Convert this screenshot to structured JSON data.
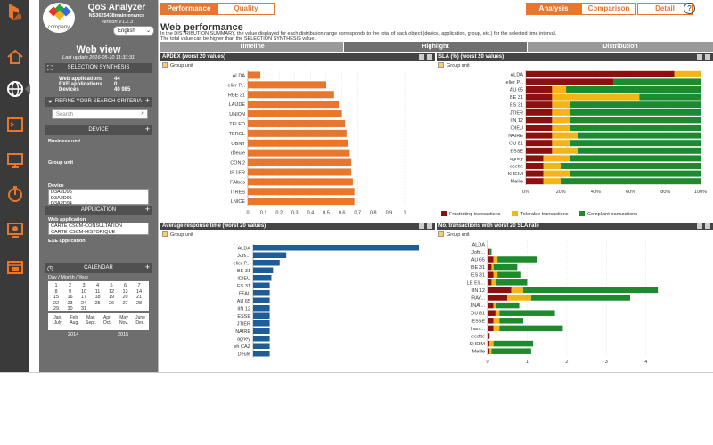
{
  "app": {
    "name": "QoS Analyzer",
    "instance": "NS3625438maintenance",
    "version": "Version V1.2.3",
    "language": "English",
    "logo_text": "company"
  },
  "sidebar": {
    "view_title": "Web view",
    "last_update": "Last update 2016-05-10 11:33:31",
    "selection_title": "SELECTION SYNTHESIS",
    "stats": [
      {
        "label": "Web applications",
        "value": "44"
      },
      {
        "label": "EXE applications",
        "value": "0"
      },
      {
        "label": "Devices",
        "value": "40 985"
      }
    ],
    "refine_title": "REFINE YOUR SEARCH CRITERIA",
    "search_placeholder": "Search",
    "device_title": "DEVICE",
    "business_unit_label": "Business unit",
    "group_unit_label": "Group unit",
    "device_label": "Device",
    "device_items": [
      "D3A2D96",
      "D3A2D95",
      "D3A2D94"
    ],
    "application_title": "APPLICATION",
    "web_app_label": "Web application",
    "web_app_items": [
      "CARTE CSCM-CONSULTATION",
      "CARTE CSCM-HISTORIQUE"
    ],
    "exe_app_label": "EXE application",
    "calendar_title": "CALENDAR",
    "calendar_mode": "Day / Month / Year",
    "calendar_days": [
      "1",
      "2",
      "3",
      "4",
      "5",
      "6",
      "7",
      "8",
      "9",
      "10",
      "11",
      "12",
      "13",
      "14",
      "15",
      "16",
      "17",
      "18",
      "19",
      "20",
      "21",
      "22",
      "23",
      "24",
      "25",
      "26",
      "27",
      "28",
      "29",
      "30",
      "31"
    ],
    "months": [
      {
        "l1": "Jan.",
        "l2": "July"
      },
      {
        "l1": "Feb.",
        "l2": "Aug."
      },
      {
        "l1": "Mar.",
        "l2": "Sept."
      },
      {
        "l1": "Apr.",
        "l2": "Oct."
      },
      {
        "l1": "May",
        "l2": "Nov."
      },
      {
        "l1": "June",
        "l2": "Dec."
      }
    ],
    "years": [
      "2014",
      "2015"
    ]
  },
  "tabs": {
    "performance": "Performance",
    "quality": "Quality",
    "analysis": "Analysis",
    "comparison": "Comparison",
    "detail": "Detail",
    "help": "?"
  },
  "page": {
    "title": "Web performance",
    "desc1": "In the DISTRIBUTION SUMMARY, the value displayed for each distribution range corresponds to the total of each object (device, application, group, etc.) for the selected time interval.",
    "desc2": "The total value can be higher than the SELECTION SYNTHESIS value."
  },
  "subtabs": {
    "timeline": "Timeline",
    "highlight": "Highlight",
    "distribution": "Distribution"
  },
  "colors": {
    "orange": "#e8762c",
    "blue": "#1f5d99",
    "red": "#8b1111",
    "yellow": "#f5b418",
    "green": "#1e8a2e",
    "dark": "#444444"
  },
  "panels": {
    "apdex_title": "APDEX (worst 20 values)",
    "sla_title": "SLA (%) (worst 20 values)",
    "response_title": "Average response time (worst 20 values)",
    "transactions_title": "No. transactions with worst 20 SLA rate",
    "group_unit": "Group unit"
  },
  "chart_data": [
    {
      "type": "bar",
      "orientation": "horizontal",
      "title": "APDEX (worst 20 values)",
      "categories": [
        "ALDA",
        "elier P...",
        "RBE 31",
        "LAUDE",
        "UNION",
        "TELED",
        "TEROL",
        "OBNY",
        "rDeule",
        "CON 2",
        "IS 1ER",
        "FAlbes",
        "ITRES",
        "LNICE"
      ],
      "values": [
        0.08,
        0.5,
        0.55,
        0.58,
        0.6,
        0.62,
        0.63,
        0.64,
        0.65,
        0.66,
        0.66,
        0.67,
        0.68,
        0.68
      ],
      "xlim": [
        0,
        1
      ],
      "xticks": [
        "0",
        "0,1",
        "0,2",
        "0,3",
        "0,4",
        "0,5",
        "0,6",
        "0,7",
        "0,8",
        "0,9",
        "1"
      ]
    },
    {
      "type": "bar",
      "orientation": "horizontal",
      "stacked": true,
      "title": "SLA (%) (worst 20 values)",
      "categories": [
        "ALDA",
        "elier P...",
        "AU 65",
        "BE 31",
        "ES 31",
        "JTIER",
        "IIN 12",
        "IDIEU",
        "NAIRE",
        "OU 81",
        "ESSE",
        "agney",
        "ecette",
        "KHEIM",
        "Meille"
      ],
      "series": [
        {
          "name": "Frustrating transactions",
          "values": [
            85,
            50,
            15,
            15,
            15,
            15,
            15,
            15,
            15,
            15,
            15,
            10,
            10,
            10,
            10
          ]
        },
        {
          "name": "Tolerable transactions",
          "values": [
            15,
            0,
            8,
            50,
            10,
            10,
            10,
            10,
            15,
            10,
            15,
            15,
            10,
            15,
            10
          ]
        },
        {
          "name": "Compliant transactions",
          "values": [
            0,
            50,
            77,
            35,
            75,
            75,
            75,
            75,
            70,
            75,
            70,
            75,
            80,
            75,
            80
          ]
        }
      ],
      "xlim": [
        0,
        100
      ],
      "xticks": [
        "0%",
        "20%",
        "40%",
        "60%",
        "80%",
        "100%"
      ]
    },
    {
      "type": "bar",
      "orientation": "horizontal",
      "title": "Average response time (worst 20 values)",
      "categories": [
        "ALDA",
        "Joffr...",
        "elier P...",
        "BE 31",
        "IDIEU",
        "ES 31",
        "FFAL",
        "AU 65",
        "IIN 12",
        "ESSE",
        "JTIER",
        "NAIRE",
        "agney",
        "eh CAZ",
        "Deule"
      ],
      "values": [
        100,
        20,
        16,
        12,
        11,
        10,
        10,
        10,
        10,
        10,
        10,
        10,
        10,
        10,
        10
      ]
    },
    {
      "type": "bar",
      "orientation": "horizontal",
      "stacked": true,
      "title": "No. transactions with worst 20 SLA rate",
      "categories": [
        "ALDA",
        "Joffr...",
        "AU 65",
        "BE 31",
        "ES 31",
        "LE ES...",
        "IIN 12",
        "RAY...",
        "JNAI...",
        "OU 81",
        "ESSE",
        "ham...",
        "ecette",
        "KHEIM",
        "Meille"
      ],
      "series": [
        {
          "name": "Frustrating transactions",
          "values": [
            0,
            0.05,
            0.15,
            0.1,
            0.15,
            0.1,
            0.6,
            0.5,
            0.15,
            0.2,
            0.15,
            0.15,
            0.05,
            0.05,
            0.05
          ]
        },
        {
          "name": "Tolerable transactions",
          "values": [
            0,
            0,
            0.1,
            0.05,
            0.1,
            0.1,
            0.3,
            0.6,
            0.05,
            0.1,
            0.15,
            0.15,
            0,
            0.1,
            0.05
          ]
        },
        {
          "name": "Compliant transactions",
          "values": [
            0,
            0.05,
            1,
            0.6,
            0.6,
            0.8,
            3.4,
            2.5,
            0.6,
            1.4,
            0.6,
            1.6,
            0,
            1,
            1
          ]
        }
      ],
      "xlim": [
        0,
        4.5
      ],
      "xticks": [
        "0",
        "1",
        "2",
        "3",
        "4"
      ]
    }
  ]
}
